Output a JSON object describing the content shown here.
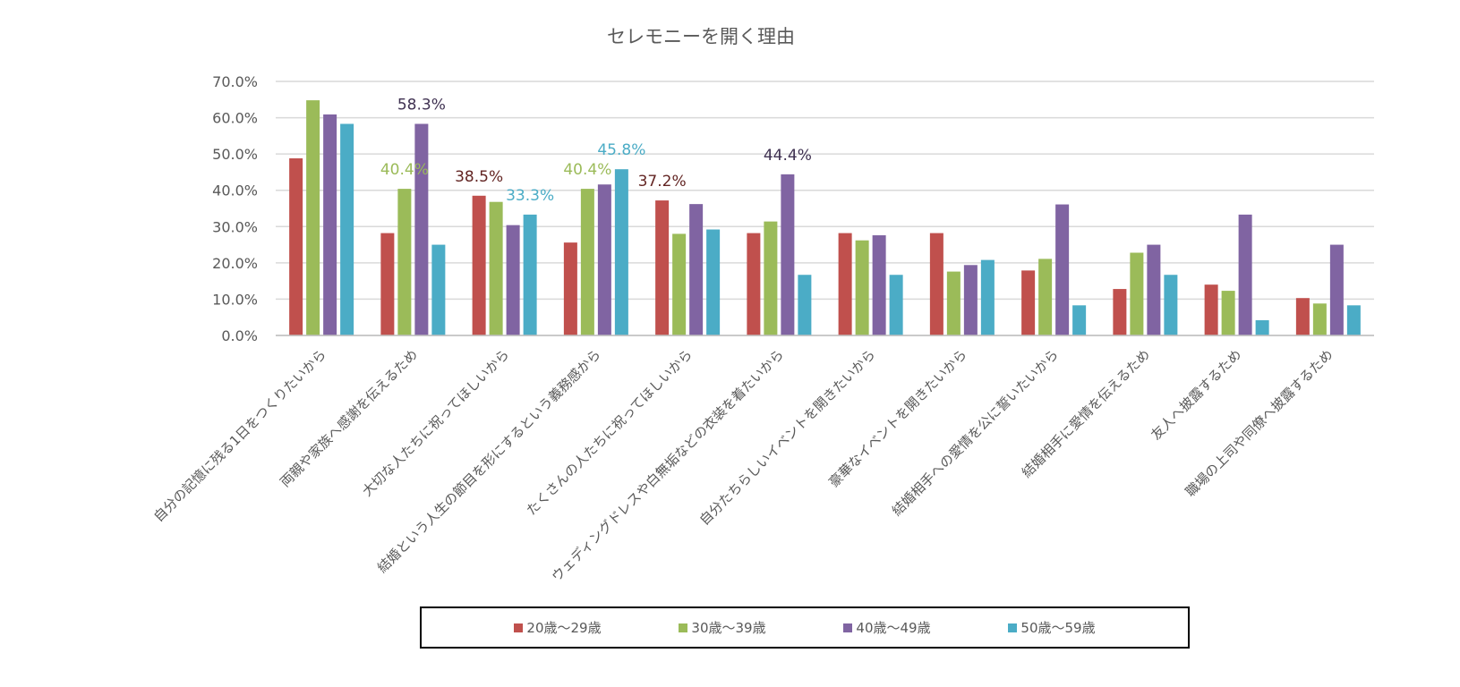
{
  "chart_data": {
    "type": "bar",
    "title": "セレモニーを開く理由",
    "xlabel": "",
    "ylabel": "",
    "ylim": [
      0,
      70
    ],
    "yticks": [
      "0.0%",
      "10.0%",
      "20.0%",
      "30.0%",
      "40.0%",
      "50.0%",
      "60.0%",
      "70.0%"
    ],
    "grid": true,
    "legend_position": "bottom",
    "categories": [
      "自分の記憶に残る1日をつくりたいから",
      "両親や家族へ感謝を伝えるため",
      "大切な人たちに祝ってほしいから",
      "結婚という人生の節目を形にするという義務感から",
      "たくさんの人たちに祝ってほしいから",
      "ウェディングドレスや白無垢などの衣装を着たいから",
      "自分たちらしいイベントを開きたいから",
      "豪華なイベントを開きたいから",
      "結婚相手への愛情を公に誓いたいから",
      "結婚相手に愛情を伝えるため",
      "友人へ披露するため",
      "職場の上司や同僚へ披露するため"
    ],
    "series": [
      {
        "name": "20歳～29歳",
        "color": "#C0504D",
        "values": [
          48.8,
          28.2,
          38.5,
          25.6,
          37.2,
          28.2,
          28.2,
          28.2,
          17.9,
          12.8,
          14.0,
          10.3
        ]
      },
      {
        "name": "30歳～39歳",
        "color": "#9BBB59",
        "values": [
          64.8,
          40.4,
          36.8,
          40.4,
          28.0,
          31.4,
          26.2,
          17.6,
          21.1,
          22.8,
          12.3,
          8.8
        ]
      },
      {
        "name": "40歳～49歳",
        "color": "#8064A2",
        "values": [
          60.9,
          58.3,
          30.4,
          41.6,
          36.2,
          44.4,
          27.6,
          19.4,
          36.1,
          25.0,
          33.3,
          25.0
        ]
      },
      {
        "name": "50歳～59歳",
        "color": "#4BACC6",
        "values": [
          58.3,
          25.0,
          33.3,
          45.8,
          29.2,
          16.7,
          16.7,
          20.8,
          8.3,
          16.7,
          4.2,
          8.3
        ]
      }
    ],
    "data_labels": [
      {
        "text": "58.3%",
        "category_index": 1,
        "series_index": 2,
        "color": "#3F3151"
      },
      {
        "text": "40.4%",
        "category_index": 1,
        "series_index": 1,
        "color": "#9BBB59"
      },
      {
        "text": "38.5%",
        "category_index": 2,
        "series_index": 0,
        "color": "#632523"
      },
      {
        "text": "33.3%",
        "category_index": 2,
        "series_index": 3,
        "color": "#4BACC6"
      },
      {
        "text": "40.4%",
        "category_index": 3,
        "series_index": 1,
        "color": "#9BBB59"
      },
      {
        "text": "45.8%",
        "category_index": 3,
        "series_index": 3,
        "color": "#4BACC6"
      },
      {
        "text": "37.2%",
        "category_index": 4,
        "series_index": 0,
        "color": "#632523"
      },
      {
        "text": "44.4%",
        "category_index": 5,
        "series_index": 2,
        "color": "#3F3151"
      }
    ]
  }
}
